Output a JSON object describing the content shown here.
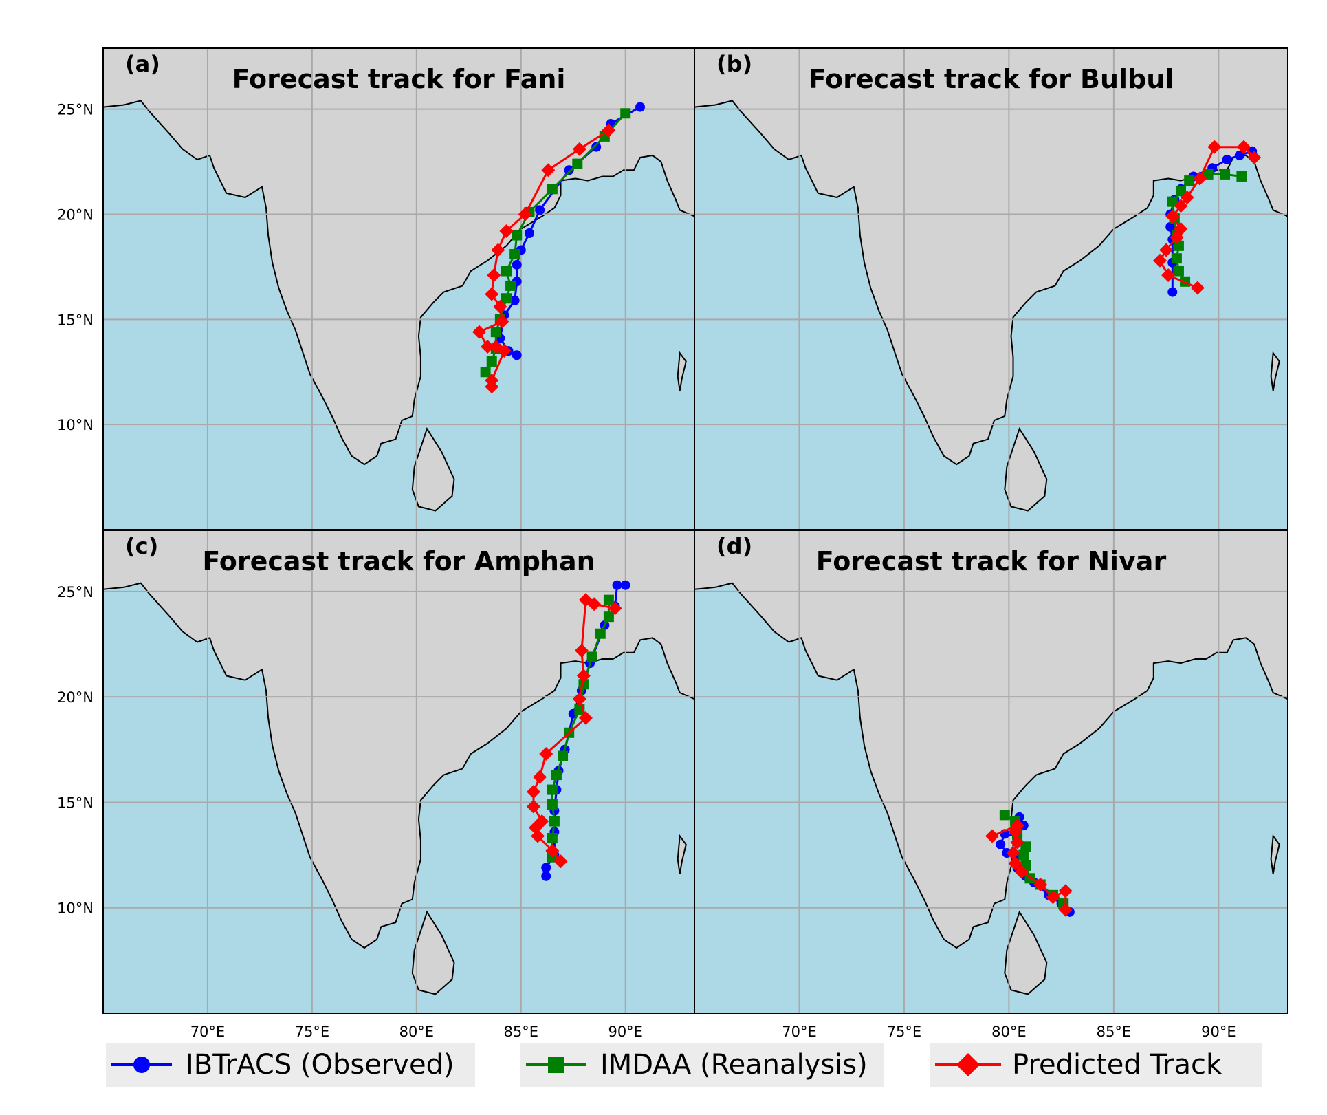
{
  "colors": {
    "ocean": "#add8e6",
    "land": "#d3d3d3",
    "grid": "#a9a9a9",
    "ibtracs": "#0000ff",
    "imdaa": "#008000",
    "predicted": "#ff0000"
  },
  "legend": [
    {
      "label": "IBTrACS (Observed)",
      "marker": "circle",
      "color": "#0000ff"
    },
    {
      "label": "IMDAA (Reanalysis)",
      "marker": "square",
      "color": "#008000"
    },
    {
      "label": "Predicted Track",
      "marker": "diamond",
      "color": "#ff0000"
    }
  ],
  "chart_data": [
    {
      "type": "line",
      "panel": "(a)",
      "title": "Forecast track for Fani",
      "xlim": [
        65,
        93.3
      ],
      "ylim": [
        5,
        27.9
      ],
      "x_ticks": [
        {
          "value": 70,
          "label": "70°E"
        },
        {
          "value": 75,
          "label": "75°E"
        },
        {
          "value": 80,
          "label": "80°E"
        },
        {
          "value": 85,
          "label": "85°E"
        },
        {
          "value": 90,
          "label": "90°E"
        }
      ],
      "y_ticks": [
        {
          "value": 10,
          "label": "10°N"
        },
        {
          "value": 15,
          "label": "15°N"
        },
        {
          "value": 20,
          "label": "20°N"
        },
        {
          "value": 25,
          "label": "25°N"
        }
      ],
      "show_x_tick_labels": false,
      "show_y_tick_labels": true,
      "grid": true,
      "series": [
        {
          "name": "IBTrACS (Observed)",
          "points": [
            [
              84.8,
              13.3
            ],
            [
              84.4,
              13.5
            ],
            [
              84.0,
              14.1
            ],
            [
              84.2,
              15.2
            ],
            [
              84.7,
              15.9
            ],
            [
              84.8,
              16.8
            ],
            [
              84.8,
              17.6
            ],
            [
              85.0,
              18.3
            ],
            [
              85.4,
              19.1
            ],
            [
              85.9,
              20.2
            ],
            [
              87.3,
              22.1
            ],
            [
              88.6,
              23.2
            ],
            [
              89.3,
              24.3
            ],
            [
              90.7,
              25.1
            ]
          ]
        },
        {
          "name": "IMDAA (Reanalysis)",
          "points": [
            [
              83.3,
              12.5
            ],
            [
              83.6,
              13.0
            ],
            [
              83.8,
              13.6
            ],
            [
              83.8,
              14.4
            ],
            [
              84.0,
              15.0
            ],
            [
              84.3,
              16.0
            ],
            [
              84.5,
              16.6
            ],
            [
              84.3,
              17.3
            ],
            [
              84.7,
              18.1
            ],
            [
              84.8,
              19.0
            ],
            [
              85.4,
              20.1
            ],
            [
              86.5,
              21.2
            ],
            [
              87.7,
              22.4
            ],
            [
              89.0,
              23.7
            ],
            [
              90.0,
              24.8
            ]
          ]
        },
        {
          "name": "Predicted Track",
          "points": [
            [
              83.6,
              11.8
            ],
            [
              83.6,
              12.1
            ],
            [
              84.2,
              13.5
            ],
            [
              83.8,
              13.7
            ],
            [
              83.4,
              13.7
            ],
            [
              83.0,
              14.4
            ],
            [
              84.1,
              14.9
            ],
            [
              84.0,
              15.6
            ],
            [
              83.6,
              16.2
            ],
            [
              83.7,
              17.1
            ],
            [
              83.9,
              18.3
            ],
            [
              84.3,
              19.2
            ],
            [
              85.2,
              20.0
            ],
            [
              86.3,
              22.1
            ],
            [
              87.8,
              23.1
            ],
            [
              89.2,
              24.0
            ]
          ]
        }
      ]
    },
    {
      "type": "line",
      "panel": "(b)",
      "title": "Forecast track for Bulbul",
      "xlim": [
        65,
        93.3
      ],
      "ylim": [
        5,
        27.9
      ],
      "x_ticks": [
        {
          "value": 70,
          "label": "70°E"
        },
        {
          "value": 75,
          "label": "75°E"
        },
        {
          "value": 80,
          "label": "80°E"
        },
        {
          "value": 85,
          "label": "85°E"
        },
        {
          "value": 90,
          "label": "90°E"
        }
      ],
      "y_ticks": [
        {
          "value": 10,
          "label": "10°N"
        },
        {
          "value": 15,
          "label": "15°N"
        },
        {
          "value": 20,
          "label": "20°N"
        },
        {
          "value": 25,
          "label": "25°N"
        }
      ],
      "show_x_tick_labels": false,
      "show_y_tick_labels": false,
      "grid": true,
      "series": [
        {
          "name": "IBTrACS (Observed)",
          "points": [
            [
              87.8,
              16.3
            ],
            [
              87.8,
              17.7
            ],
            [
              87.8,
              18.8
            ],
            [
              87.7,
              19.4
            ],
            [
              87.7,
              20.0
            ],
            [
              87.9,
              20.7
            ],
            [
              88.2,
              21.2
            ],
            [
              88.8,
              21.8
            ],
            [
              89.7,
              22.2
            ],
            [
              90.4,
              22.6
            ],
            [
              91.0,
              22.8
            ],
            [
              91.6,
              23.0
            ]
          ]
        },
        {
          "name": "IMDAA (Reanalysis)",
          "points": [
            [
              88.4,
              16.8
            ],
            [
              88.1,
              17.3
            ],
            [
              88.0,
              17.9
            ],
            [
              88.1,
              18.5
            ],
            [
              88.0,
              19.0
            ],
            [
              87.9,
              19.8
            ],
            [
              87.8,
              20.6
            ],
            [
              88.2,
              21.1
            ],
            [
              88.6,
              21.6
            ],
            [
              89.5,
              21.9
            ],
            [
              90.3,
              21.9
            ],
            [
              91.1,
              21.8
            ]
          ]
        },
        {
          "name": "Predicted Track",
          "points": [
            [
              89.0,
              16.5
            ],
            [
              87.6,
              17.1
            ],
            [
              87.2,
              17.8
            ],
            [
              87.5,
              18.3
            ],
            [
              88.0,
              18.9
            ],
            [
              88.2,
              19.3
            ],
            [
              87.8,
              19.9
            ],
            [
              88.2,
              20.4
            ],
            [
              88.5,
              20.8
            ],
            [
              89.1,
              21.7
            ],
            [
              89.8,
              23.2
            ],
            [
              91.2,
              23.2
            ],
            [
              91.7,
              22.7
            ]
          ]
        }
      ]
    },
    {
      "type": "line",
      "panel": "(c)",
      "title": "Forecast track for Amphan",
      "xlim": [
        65,
        93.3
      ],
      "ylim": [
        5,
        27.9
      ],
      "x_ticks": [
        {
          "value": 70,
          "label": "70°E"
        },
        {
          "value": 75,
          "label": "75°E"
        },
        {
          "value": 80,
          "label": "80°E"
        },
        {
          "value": 85,
          "label": "85°E"
        },
        {
          "value": 90,
          "label": "90°E"
        }
      ],
      "y_ticks": [
        {
          "value": 10,
          "label": "10°N"
        },
        {
          "value": 15,
          "label": "15°N"
        },
        {
          "value": 20,
          "label": "20°N"
        },
        {
          "value": 25,
          "label": "25°N"
        }
      ],
      "show_x_tick_labels": true,
      "show_y_tick_labels": true,
      "grid": true,
      "series": [
        {
          "name": "IBTrACS (Observed)",
          "points": [
            [
              86.2,
              11.5
            ],
            [
              86.2,
              11.9
            ],
            [
              86.6,
              12.5
            ],
            [
              86.6,
              13.6
            ],
            [
              86.6,
              14.6
            ],
            [
              86.7,
              15.6
            ],
            [
              86.8,
              16.5
            ],
            [
              87.1,
              17.5
            ],
            [
              87.3,
              18.3
            ],
            [
              87.5,
              19.2
            ],
            [
              87.9,
              20.3
            ],
            [
              88.3,
              21.6
            ],
            [
              89.0,
              23.4
            ],
            [
              89.5,
              24.3
            ],
            [
              89.6,
              25.3
            ],
            [
              90.0,
              25.3
            ]
          ]
        },
        {
          "name": "IMDAA (Reanalysis)",
          "points": [
            [
              86.5,
              12.4
            ],
            [
              86.5,
              13.3
            ],
            [
              86.6,
              14.1
            ],
            [
              86.5,
              14.9
            ],
            [
              86.5,
              15.6
            ],
            [
              86.7,
              16.3
            ],
            [
              87.0,
              17.2
            ],
            [
              87.3,
              18.3
            ],
            [
              87.8,
              19.4
            ],
            [
              88.0,
              20.6
            ],
            [
              88.4,
              21.9
            ],
            [
              88.8,
              23.0
            ],
            [
              89.2,
              23.8
            ],
            [
              89.2,
              24.6
            ]
          ]
        },
        {
          "name": "Predicted Track",
          "points": [
            [
              86.9,
              12.2
            ],
            [
              86.5,
              12.7
            ],
            [
              85.8,
              13.4
            ],
            [
              85.7,
              13.8
            ],
            [
              86.0,
              14.1
            ],
            [
              85.6,
              14.8
            ],
            [
              85.6,
              15.5
            ],
            [
              85.9,
              16.2
            ],
            [
              86.2,
              17.3
            ],
            [
              88.1,
              19.0
            ],
            [
              87.8,
              19.9
            ],
            [
              88.0,
              21.0
            ],
            [
              87.9,
              22.2
            ],
            [
              88.1,
              24.6
            ],
            [
              88.5,
              24.4
            ],
            [
              89.5,
              24.2
            ]
          ]
        }
      ]
    },
    {
      "type": "line",
      "panel": "(d)",
      "title": "Forecast track for Nivar",
      "xlim": [
        65,
        93.3
      ],
      "ylim": [
        5,
        27.9
      ],
      "x_ticks": [
        {
          "value": 70,
          "label": "70°E"
        },
        {
          "value": 75,
          "label": "75°E"
        },
        {
          "value": 80,
          "label": "80°E"
        },
        {
          "value": 85,
          "label": "85°E"
        },
        {
          "value": 90,
          "label": "90°E"
        }
      ],
      "y_ticks": [
        {
          "value": 10,
          "label": "10°N"
        },
        {
          "value": 15,
          "label": "15°N"
        },
        {
          "value": 20,
          "label": "20°N"
        },
        {
          "value": 25,
          "label": "25°N"
        }
      ],
      "show_x_tick_labels": true,
      "show_y_tick_labels": false,
      "grid": true,
      "series": [
        {
          "name": "IBTrACS (Observed)",
          "points": [
            [
              82.9,
              9.8
            ],
            [
              82.5,
              10.2
            ],
            [
              81.9,
              10.6
            ],
            [
              81.2,
              11.2
            ],
            [
              80.8,
              11.5
            ],
            [
              80.4,
              11.9
            ],
            [
              80.3,
              12.4
            ],
            [
              79.9,
              12.6
            ],
            [
              79.6,
              13.0
            ],
            [
              79.8,
              13.5
            ],
            [
              80.4,
              13.4
            ],
            [
              80.7,
              13.9
            ],
            [
              80.5,
              14.3
            ]
          ]
        },
        {
          "name": "IMDAA (Reanalysis)",
          "points": [
            [
              82.6,
              10.2
            ],
            [
              82.1,
              10.6
            ],
            [
              81.5,
              11.1
            ],
            [
              81.0,
              11.4
            ],
            [
              80.8,
              12.0
            ],
            [
              80.7,
              12.5
            ],
            [
              80.8,
              12.9
            ],
            [
              80.4,
              13.5
            ],
            [
              80.3,
              14.1
            ],
            [
              79.8,
              14.4
            ]
          ]
        },
        {
          "name": "Predicted Track",
          "points": [
            [
              82.7,
              9.9
            ],
            [
              82.7,
              10.8
            ],
            [
              82.1,
              10.5
            ],
            [
              81.5,
              11.1
            ],
            [
              80.6,
              11.7
            ],
            [
              80.3,
              12.1
            ],
            [
              80.2,
              12.6
            ],
            [
              80.4,
              13.1
            ],
            [
              80.3,
              13.6
            ],
            [
              80.4,
              13.9
            ],
            [
              79.2,
              13.4
            ]
          ]
        }
      ]
    }
  ]
}
